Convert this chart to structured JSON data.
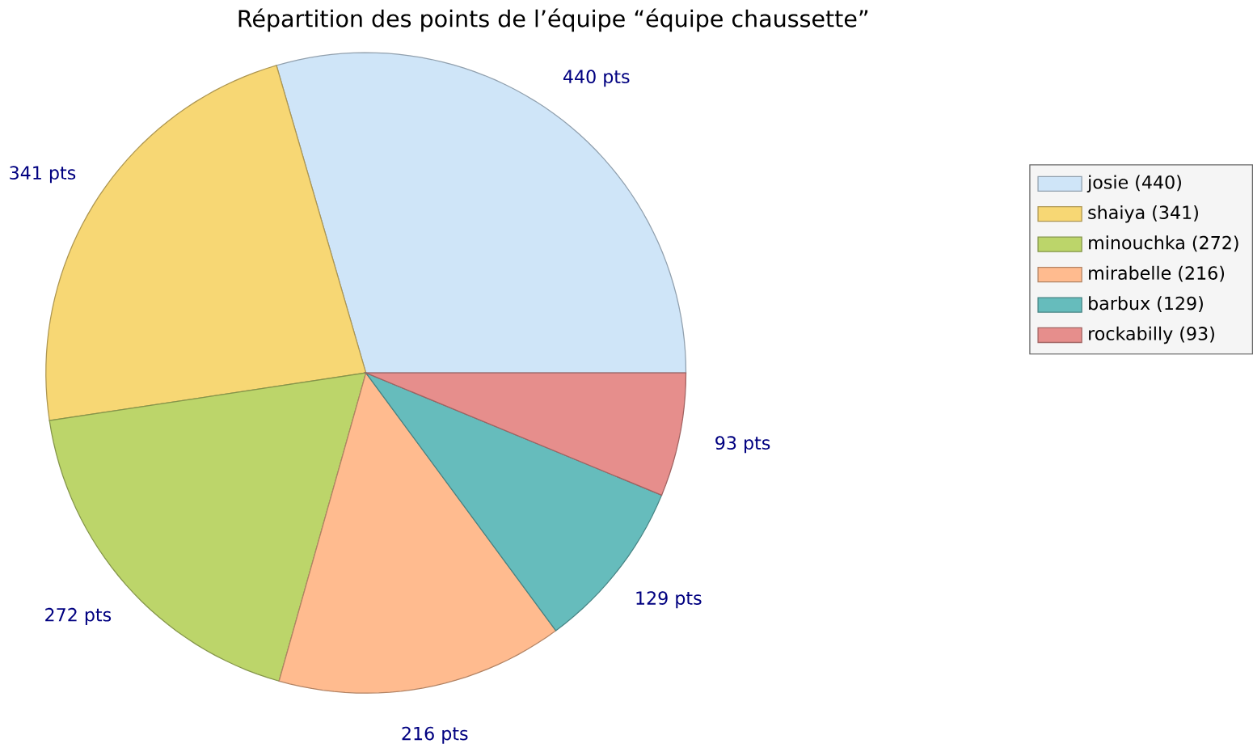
{
  "chart_data": {
    "type": "pie",
    "title": "Répartition des points de l’équipe “équipe  chaussette”",
    "categories": [
      "josie (440)",
      "shaiya (341)",
      "minouchka (272)",
      "mirabelle (216)",
      "barbux (129)",
      "rockabilly (93)"
    ],
    "values": [
      440,
      341,
      272,
      216,
      129,
      93
    ],
    "value_labels": [
      "440 pts",
      "341 pts",
      "272 pts",
      "216 pts",
      "129 pts",
      "93 pts"
    ],
    "colors": [
      "#cfe5f8",
      "#f7d774",
      "#bcd56a",
      "#ffbb8f",
      "#66bcbc",
      "#e68e8c"
    ],
    "legend": "right"
  }
}
